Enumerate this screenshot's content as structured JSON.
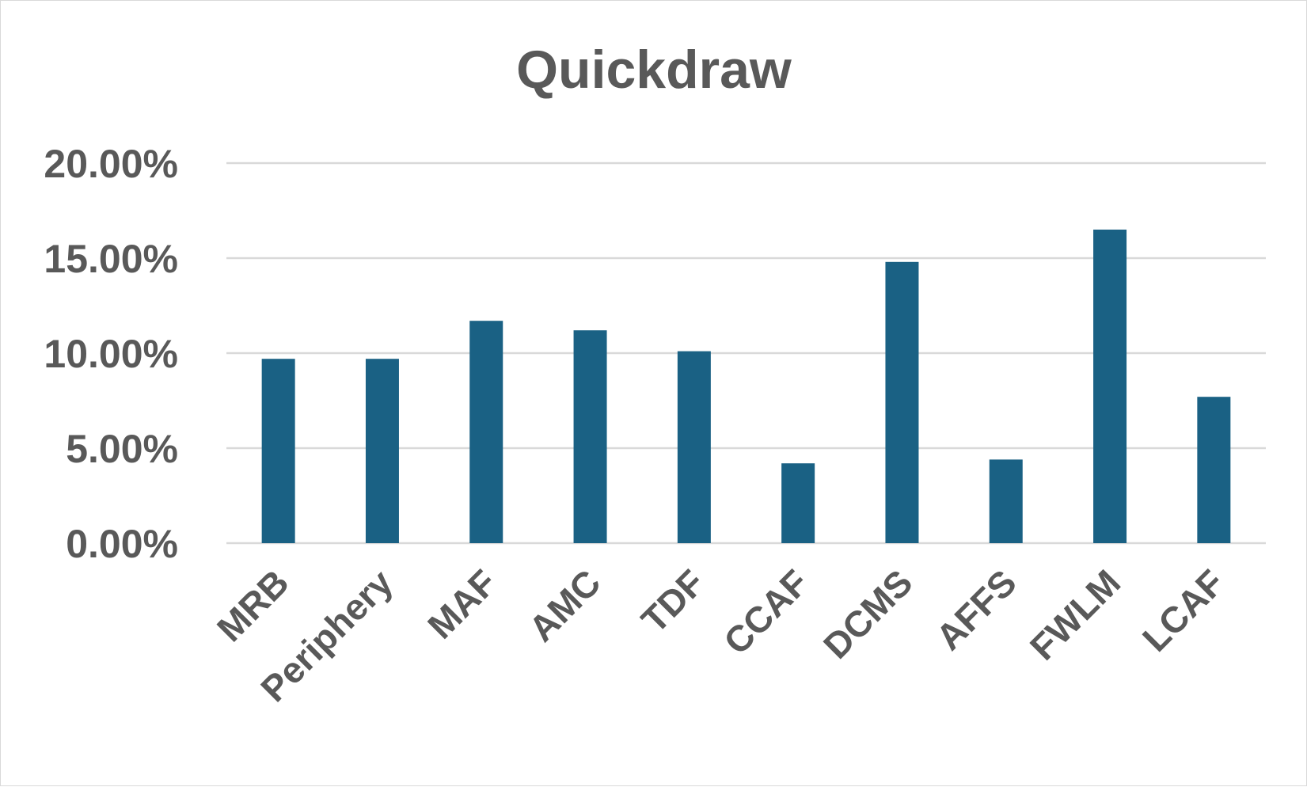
{
  "chart_data": {
    "type": "bar",
    "title": "Quickdraw",
    "xlabel": "",
    "ylabel": "",
    "categories": [
      "MRB",
      "Periphery",
      "MAF",
      "AMC",
      "TDF",
      "CCAF",
      "DCMS",
      "AFFS",
      "FWLM",
      "LCAF"
    ],
    "values": [
      0.097,
      0.097,
      0.117,
      0.112,
      0.101,
      0.042,
      0.148,
      0.044,
      0.165,
      0.077
    ],
    "ylim": [
      0,
      0.2
    ],
    "yticks": [
      0,
      0.05,
      0.1,
      0.15,
      0.2
    ],
    "ytick_labels": [
      "0.00%",
      "5.00%",
      "10.00%",
      "15.00%",
      "20.00%"
    ],
    "grid": true,
    "legend": "none",
    "bar_color": "#1a6184"
  }
}
